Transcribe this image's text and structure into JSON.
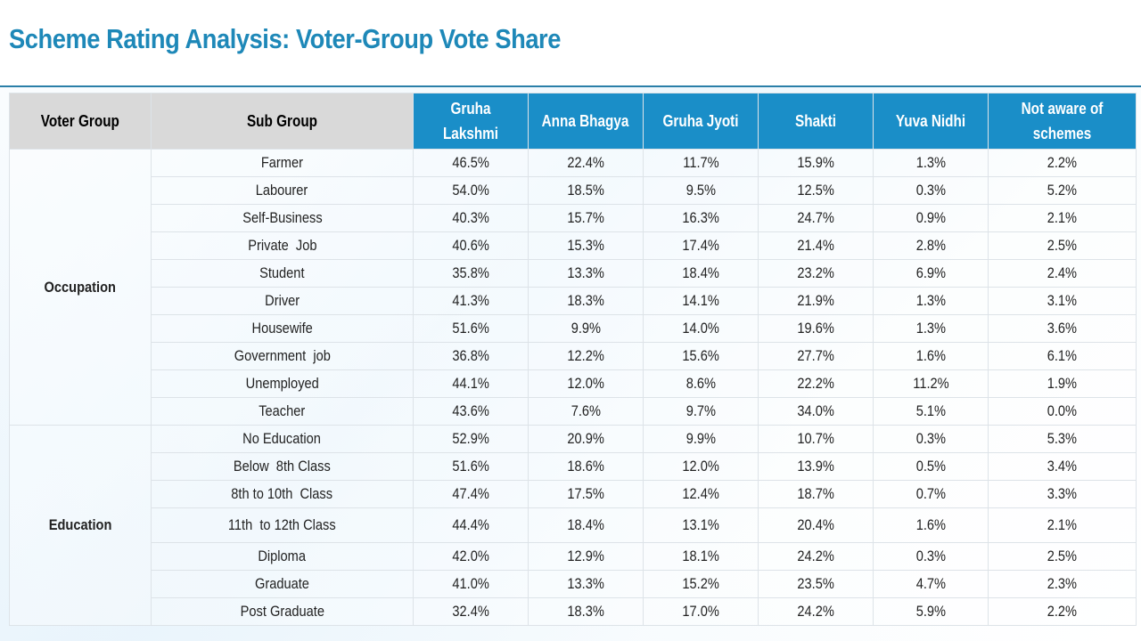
{
  "title": "Scheme Rating Analysis: Voter-Group Vote Share",
  "headers": {
    "voter_group": "Voter Group",
    "sub_group": "Sub Group",
    "gruha_lakshmi": "Gruha Lakshmi",
    "anna_bhagya": "Anna Bhagya",
    "gruha_jyoti": "Gruha Jyoti",
    "shakti": "Shakti",
    "yuva_nidhi": "Yuva Nidhi",
    "not_aware": "Not aware of schemes"
  },
  "groups": [
    {
      "name": "Occupation",
      "rows": [
        {
          "sub": "Farmer",
          "vals": [
            "46.5%",
            "22.4%",
            "11.7%",
            "15.9%",
            "1.3%",
            "2.2%"
          ]
        },
        {
          "sub": "Labourer",
          "vals": [
            "54.0%",
            "18.5%",
            "9.5%",
            "12.5%",
            "0.3%",
            "5.2%"
          ]
        },
        {
          "sub": "Self-Business",
          "vals": [
            "40.3%",
            "15.7%",
            "16.3%",
            "24.7%",
            "0.9%",
            "2.1%"
          ]
        },
        {
          "sub": "Private  Job",
          "vals": [
            "40.6%",
            "15.3%",
            "17.4%",
            "21.4%",
            "2.8%",
            "2.5%"
          ]
        },
        {
          "sub": "Student",
          "vals": [
            "35.8%",
            "13.3%",
            "18.4%",
            "23.2%",
            "6.9%",
            "2.4%"
          ]
        },
        {
          "sub": "Driver",
          "vals": [
            "41.3%",
            "18.3%",
            "14.1%",
            "21.9%",
            "1.3%",
            "3.1%"
          ]
        },
        {
          "sub": "Housewife",
          "vals": [
            "51.6%",
            "9.9%",
            "14.0%",
            "19.6%",
            "1.3%",
            "3.6%"
          ]
        },
        {
          "sub": "Government  job",
          "vals": [
            "36.8%",
            "12.2%",
            "15.6%",
            "27.7%",
            "1.6%",
            "6.1%"
          ]
        },
        {
          "sub": "Unemployed",
          "vals": [
            "44.1%",
            "12.0%",
            "8.6%",
            "22.2%",
            "11.2%",
            "1.9%"
          ]
        },
        {
          "sub": "Teacher",
          "vals": [
            "43.6%",
            "7.6%",
            "9.7%",
            "34.0%",
            "5.1%",
            "0.0%"
          ]
        }
      ]
    },
    {
      "name": "Education",
      "rows": [
        {
          "sub": "No Education",
          "vals": [
            "52.9%",
            "20.9%",
            "9.9%",
            "10.7%",
            "0.3%",
            "5.3%"
          ]
        },
        {
          "sub": "Below  8th Class",
          "vals": [
            "51.6%",
            "18.6%",
            "12.0%",
            "13.9%",
            "0.5%",
            "3.4%"
          ]
        },
        {
          "sub": "8th to 10th  Class",
          "vals": [
            "47.4%",
            "17.5%",
            "12.4%",
            "18.7%",
            "0.7%",
            "3.3%"
          ]
        },
        {
          "sub": "11th  to 12th Class",
          "vals": [
            "44.4%",
            "18.4%",
            "13.1%",
            "20.4%",
            "1.6%",
            "2.1%"
          ]
        },
        {
          "sub": "Diploma",
          "vals": [
            "42.0%",
            "12.9%",
            "18.1%",
            "24.2%",
            "0.3%",
            "2.5%"
          ]
        },
        {
          "sub": "Graduate",
          "vals": [
            "41.0%",
            "13.3%",
            "15.2%",
            "23.5%",
            "4.7%",
            "2.3%"
          ]
        },
        {
          "sub": "Post Graduate",
          "vals": [
            "32.4%",
            "18.3%",
            "17.0%",
            "24.2%",
            "5.9%",
            "2.2%"
          ]
        }
      ]
    }
  ]
}
